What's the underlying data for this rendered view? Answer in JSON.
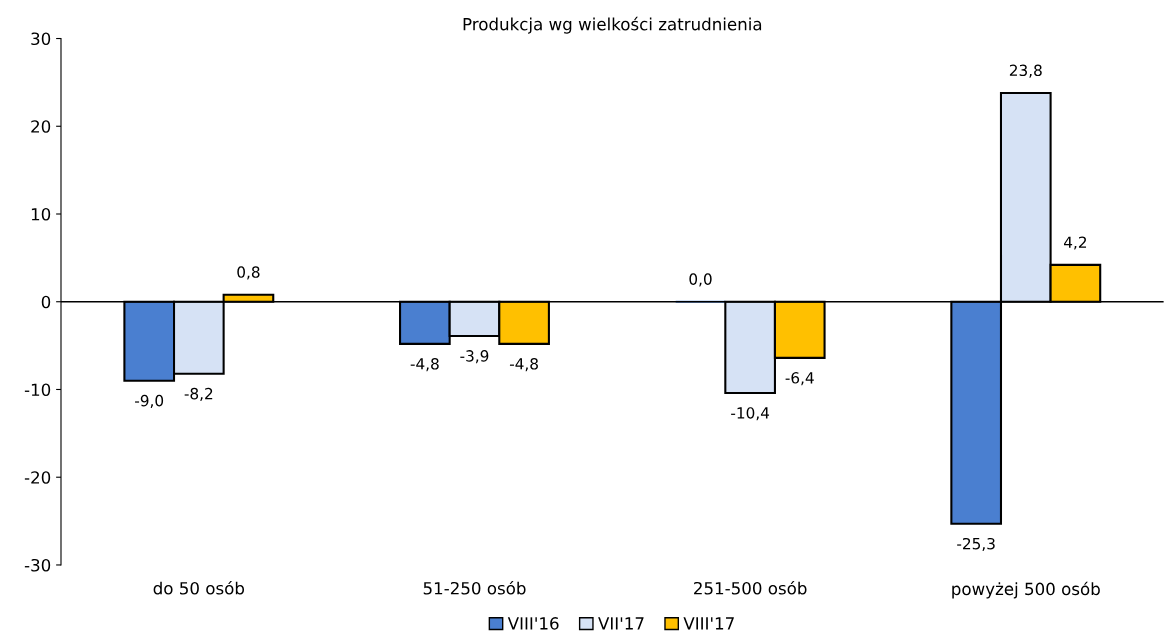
{
  "chart_data": {
    "type": "bar",
    "title": "Produkcja wg wielkości zatrudnienia",
    "categories": [
      "do 50 osób",
      "51-250 osób",
      "251-500 osób",
      "powyżej 500 osób"
    ],
    "series": [
      {
        "name": "VIII'16",
        "color": "#4a7fd0",
        "values": [
          -9.0,
          -4.8,
          0.0,
          -25.3
        ],
        "value_labels": [
          "-9,0",
          "-4,8",
          "0,0",
          "-25,3"
        ]
      },
      {
        "name": "VII'17",
        "color": "#d6e2f5",
        "values": [
          -8.2,
          -3.9,
          -10.4,
          23.8
        ],
        "value_labels": [
          "-8,2",
          "-3,9",
          "-10,4",
          "23,8"
        ]
      },
      {
        "name": "VIII'17",
        "color": "#ffc000",
        "values": [
          0.8,
          -4.8,
          -6.4,
          4.2
        ],
        "value_labels": [
          "0,8",
          "-4,8",
          "-6,4",
          "4,2"
        ]
      }
    ],
    "ylim": [
      -30,
      30
    ],
    "yticks": [
      -30,
      -20,
      -10,
      0,
      10,
      20,
      30
    ],
    "legend": "bottom"
  }
}
